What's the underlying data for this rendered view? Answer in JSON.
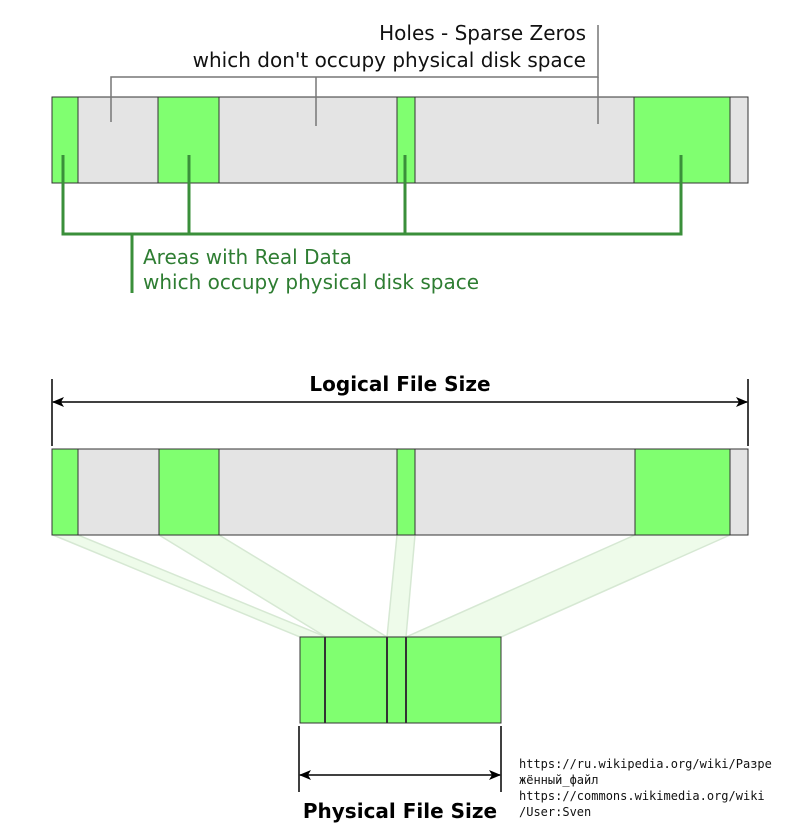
{
  "colors": {
    "data": "#80ff70",
    "hole": "#e4e4e4",
    "outline": "#333333",
    "bracket_green": "#3a8f3a",
    "label_green": "#2e7d32",
    "projection": "#eefbea"
  },
  "holes_label": {
    "line1": "Holes - Sparse Zeros",
    "line2": "which don't occupy physical disk space"
  },
  "data_label": {
    "line1": "Areas with Real Data",
    "line2": "which occupy physical disk space"
  },
  "logical_label": "Logical File Size",
  "physical_label": "Physical File Size",
  "credits": [
    "https://ru.wikipedia.org/wiki/Разре",
    "жённый_файл",
    "https://commons.wikimedia.org/wiki",
    "/User:Sven"
  ]
}
